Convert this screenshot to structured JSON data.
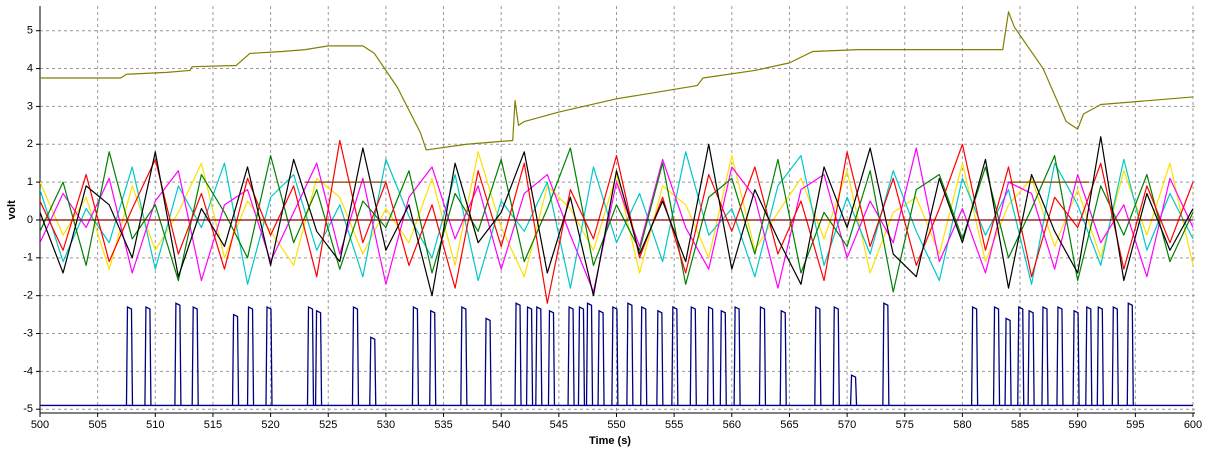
{
  "chart_data": {
    "type": "line",
    "x_label": "Time (s)",
    "y_label": "volt",
    "xlim": [
      500,
      600
    ],
    "ylim": [
      -5.1,
      5.6
    ],
    "xticks": [
      500,
      505,
      510,
      515,
      520,
      525,
      530,
      535,
      540,
      545,
      550,
      555,
      560,
      565,
      570,
      575,
      580,
      585,
      590,
      595,
      600
    ],
    "yticks": [
      -5,
      -4,
      -3,
      -2,
      -1,
      0,
      1,
      2,
      3,
      4,
      5
    ],
    "grid": true,
    "x": [
      500,
      502,
      504,
      506,
      508,
      510,
      512,
      514,
      516,
      518,
      520,
      522,
      524,
      526,
      528,
      530,
      532,
      534,
      536,
      538,
      540,
      542,
      544,
      546,
      548,
      550,
      552,
      554,
      556,
      558,
      560,
      562,
      564,
      566,
      568,
      570,
      572,
      574,
      576,
      578,
      580,
      582,
      584,
      586,
      588,
      590,
      592,
      594,
      596,
      598,
      600
    ],
    "series": [
      {
        "color": "#ffe000",
        "values": [
          1.0,
          -0.4,
          0.6,
          -1.3,
          0.9,
          -0.8,
          0.2,
          1.5,
          -1.0,
          0.5,
          -0.3,
          -1.2,
          1.1,
          0.6,
          -0.9,
          0.3,
          -0.6,
          1.1,
          -1.2,
          1.8,
          -0.2,
          -1.5,
          0.9,
          0.3,
          -0.8,
          1.2,
          -1.4,
          0.9,
          0.4,
          -1.0,
          1.7,
          -0.8,
          0.2,
          1.1,
          -0.5,
          1.3,
          -1.4,
          0.2,
          0.6,
          -0.9,
          1.5,
          -1.1,
          0.4,
          1.1,
          -0.7,
          0.8,
          -1.0,
          1.3,
          -0.4,
          1.5,
          -1.2
        ]
      },
      {
        "color": "#00c8c8",
        "values": [
          0.8,
          -1.1,
          0.3,
          -0.6,
          1.4,
          -1.3,
          0.9,
          -0.2,
          1.5,
          -1.7,
          0.6,
          1.2,
          -0.8,
          0.4,
          -1.5,
          1.6,
          0.1,
          -1.0,
          1.2,
          -1.6,
          0.5,
          -0.3,
          1.0,
          -1.8,
          1.4,
          -0.6,
          0.7,
          -1.1,
          1.8,
          -0.4,
          0.3,
          -1.5,
          0.9,
          1.7,
          -1.2,
          0.6,
          -0.9,
          1.3,
          -0.3,
          -1.6,
          1.1,
          -0.4,
          0.8,
          -1.7,
          1.5,
          0.4,
          -1.2,
          1.6,
          -0.8,
          0.7,
          -0.5
        ]
      },
      {
        "color": "#ff00ff",
        "values": [
          -0.6,
          0.7,
          -0.2,
          1.1,
          -1.4,
          0.5,
          1.3,
          -1.6,
          0.4,
          0.8,
          -1.1,
          0.2,
          1.5,
          -0.9,
          1.1,
          -1.7,
          0.6,
          1.4,
          -0.5,
          0.9,
          -1.3,
          0.7,
          1.2,
          -0.4,
          -1.9,
          1.0,
          -0.7,
          1.6,
          -0.2,
          -1.3,
          1.4,
          0.6,
          -1.8,
          0.8,
          1.2,
          -1.0,
          0.5,
          -0.6,
          1.9,
          -1.1,
          0.3,
          -1.4,
          1.0,
          0.7,
          -1.3,
          1.2,
          -0.6,
          0.4,
          -1.5,
          1.1,
          -0.2
        ]
      },
      {
        "color": "#008000",
        "values": [
          -0.3,
          1.0,
          -1.2,
          1.8,
          -0.5,
          0.4,
          -1.6,
          1.2,
          0.2,
          -1.0,
          1.7,
          -0.6,
          0.8,
          -1.3,
          0.5,
          -0.2,
          1.3,
          -1.4,
          0.7,
          -0.3,
          1.6,
          -1.1,
          0.3,
          1.9,
          -1.2,
          0.4,
          -0.8,
          1.5,
          -1.7,
          0.6,
          1.1,
          -0.9,
          1.6,
          -1.4,
          0.2,
          -0.7,
          1.3,
          -1.9,
          0.8,
          1.2,
          -0.5,
          1.4,
          -1.0,
          0.3,
          1.7,
          -1.6,
          0.9,
          -0.4,
          1.2,
          -1.1,
          0.2
        ]
      },
      {
        "color": "#ff0000",
        "values": [
          0.5,
          -0.8,
          1.2,
          -1.1,
          0.3,
          1.6,
          -0.9,
          0.7,
          -1.3,
          1.1,
          -0.4,
          0.9,
          -1.5,
          2.1,
          -0.6,
          1.0,
          -1.2,
          0.4,
          -1.8,
          1.3,
          -0.7,
          1.5,
          -2.2,
          0.8,
          -0.5,
          1.7,
          -1.0,
          0.6,
          -1.4,
          1.2,
          -0.3,
          1.4,
          -0.9,
          0.5,
          -1.6,
          1.8,
          -0.7,
          1.1,
          -1.2,
          0.3,
          2.0,
          -0.8,
          1.4,
          -1.5,
          0.6,
          -0.2,
          1.5,
          -1.3,
          0.9,
          -0.6,
          1.0
        ]
      },
      {
        "color": "#000000",
        "values": [
          0.2,
          -1.4,
          0.9,
          0.4,
          -1.0,
          1.8,
          -1.5,
          0.3,
          -0.7,
          1.4,
          -1.2,
          1.6,
          -0.3,
          -1.1,
          1.9,
          -0.8,
          0.4,
          -2.0,
          1.5,
          -0.6,
          0.2,
          1.8,
          -1.4,
          0.6,
          -2.0,
          1.3,
          -0.9,
          0.5,
          -1.1,
          2.0,
          -1.3,
          0.8,
          -0.5,
          -1.7,
          1.4,
          -0.2,
          1.9,
          -0.9,
          -1.5,
          1.1,
          -0.6,
          1.6,
          -1.8,
          1.2,
          -0.3,
          -1.4,
          2.2,
          -1.6,
          0.7,
          -0.8,
          0.3
        ]
      },
      {
        "color": "#800000",
        "x": [
          500,
          600
        ],
        "values": [
          0,
          0
        ]
      },
      {
        "color": "#804000",
        "x": [
          523,
          530,
          530.1,
          584,
          591
        ],
        "values": [
          1,
          1,
          null,
          1,
          1
        ]
      },
      {
        "color": "#808000",
        "x": [
          500,
          507,
          507.5,
          511,
          513,
          513.2,
          517,
          518.2,
          521,
          523,
          525,
          528,
          529,
          531,
          533,
          533.5,
          537,
          541,
          541.2,
          541.5,
          542,
          545,
          550,
          553,
          557,
          557.5,
          562,
          565,
          567,
          571,
          583.5,
          584,
          584.5,
          587,
          589,
          590,
          590.5,
          592,
          600
        ],
        "values": [
          3.75,
          3.75,
          3.85,
          3.9,
          3.95,
          4.05,
          4.08,
          4.4,
          4.45,
          4.5,
          4.6,
          4.6,
          4.4,
          3.5,
          2.3,
          1.85,
          2.0,
          2.1,
          3.15,
          2.5,
          2.6,
          2.85,
          3.2,
          3.35,
          3.55,
          3.75,
          3.95,
          4.15,
          4.45,
          4.5,
          4.5,
          5.5,
          5.1,
          4.0,
          2.6,
          2.4,
          2.8,
          3.05,
          3.25
        ]
      },
      {
        "color": "#000080",
        "style": "pulse",
        "baseline": -4.9,
        "x": [
          507.5,
          509.1,
          511.7,
          513.2,
          516.7,
          518.0,
          519.6,
          523.2,
          523.9,
          527.1,
          528.6,
          532.3,
          533.8,
          536.5,
          538.6,
          541.2,
          542.2,
          543.0,
          544.1,
          545.8,
          546.7,
          547.4,
          548.4,
          549.6,
          550.9,
          552.1,
          553.5,
          554.8,
          556.4,
          557.9,
          559.0,
          560.2,
          562.4,
          564.2,
          567.2,
          568.8,
          570.3,
          573.1,
          580.8,
          582.7,
          583.7,
          584.8,
          585.7,
          586.9,
          588.2,
          589.6,
          590.7,
          591.7,
          593.0,
          594.3
        ],
        "values": [
          -2.3,
          -2.3,
          -2.2,
          -2.3,
          -2.5,
          -2.3,
          -2.3,
          -2.3,
          -2.4,
          -2.3,
          -3.1,
          -2.3,
          -2.4,
          -2.3,
          -2.6,
          -2.2,
          -2.3,
          -2.3,
          -2.4,
          -2.3,
          -2.3,
          -2.2,
          -2.4,
          -2.3,
          -2.2,
          -2.3,
          -2.4,
          -2.3,
          -2.3,
          -2.3,
          -2.4,
          -2.3,
          -2.3,
          -2.4,
          -2.3,
          -2.3,
          -4.1,
          -2.2,
          -2.3,
          -2.3,
          -2.6,
          -2.3,
          -2.4,
          -2.3,
          -2.3,
          -2.4,
          -2.3,
          -2.3,
          -2.3,
          -2.2
        ]
      }
    ]
  }
}
